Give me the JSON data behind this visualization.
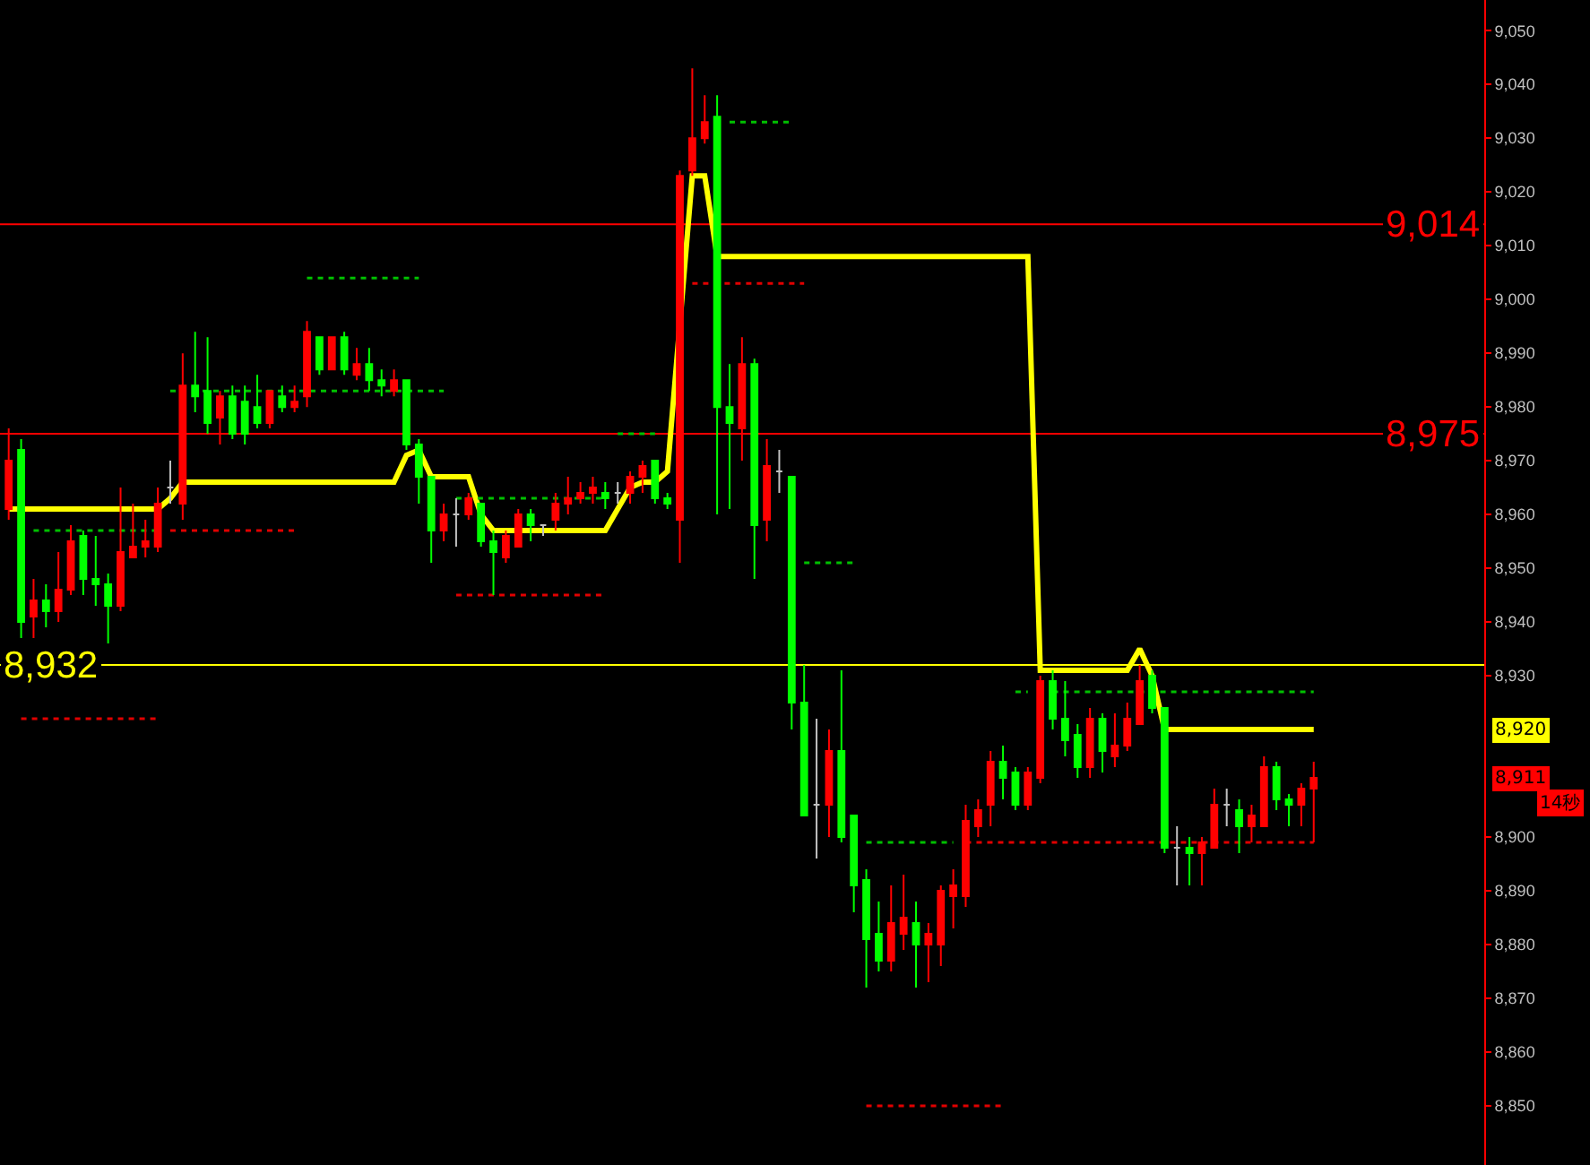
{
  "chart_data": {
    "type": "candlestick",
    "categories": [
      null,
      null,
      null,
      null,
      null,
      null,
      null,
      null,
      null,
      null,
      null,
      null,
      null,
      null,
      null,
      null,
      null,
      null,
      null,
      null,
      null,
      null,
      null,
      null,
      null,
      null,
      null,
      null,
      null,
      null,
      null,
      null,
      null,
      null,
      null,
      null,
      null,
      null,
      null,
      null,
      null,
      null,
      null,
      null,
      null,
      null,
      null,
      null,
      null,
      null,
      null,
      null,
      null,
      null,
      null,
      null,
      null,
      null,
      null,
      null,
      null,
      null,
      null,
      null,
      null,
      null,
      null,
      null,
      null,
      null,
      null,
      null,
      null,
      null,
      null,
      null,
      null,
      null,
      null,
      null,
      null,
      null,
      null,
      null,
      null,
      null,
      null,
      null,
      null,
      null,
      null,
      null,
      null,
      null,
      null,
      null,
      null,
      null,
      null,
      null,
      null,
      null,
      null,
      null,
      null,
      null
    ],
    "colors": [
      "#ff0000",
      "#00ff00",
      "#ff0000",
      "#00ff00",
      "#ff0000",
      "#ff0000",
      "#00ff00",
      "#00ff00",
      "#00ff00",
      "#ff0000",
      "#ff0000",
      "#ff0000",
      "#ff0000",
      "#c0c0c0",
      "#ff0000",
      "#00ff00",
      "#00ff00",
      "#ff0000",
      "#00ff00",
      "#00ff00",
      "#00ff00",
      "#ff0000",
      "#00ff00",
      "#ff0000",
      "#ff0000",
      "#00ff00",
      "#ff0000",
      "#00ff00",
      "#ff0000",
      "#00ff00",
      "#00ff00",
      "#ff0000",
      "#00ff00",
      "#00ff00",
      "#00ff00",
      "#ff0000",
      "#c0c0c0",
      "#ff0000",
      "#00ff00",
      "#00ff00",
      "#ff0000",
      "#ff0000",
      "#00ff00",
      "#c0c0c0",
      "#ff0000",
      "#ff0000",
      "#ff0000",
      "#ff0000",
      "#00ff00",
      "#c0c0c0",
      "#ff0000",
      "#ff0000",
      "#00ff00",
      "#00ff00",
      "#ff0000",
      "#ff0000",
      "#ff0000",
      "#00ff00",
      "#00ff00",
      "#ff0000",
      "#00ff00",
      "#ff0000",
      "#c0c0c0",
      "#00ff00",
      "#00ff00",
      "#c0c0c0",
      "#ff0000",
      "#00ff00",
      "#00ff00",
      "#00ff00",
      "#00ff00",
      "#ff0000",
      "#ff0000",
      "#00ff00",
      "#ff0000",
      "#ff0000",
      "#ff0000",
      "#ff0000",
      "#ff0000",
      "#ff0000",
      "#00ff00",
      "#00ff00",
      "#ff0000",
      "#ff0000",
      "#00ff00",
      "#00ff00",
      "#00ff00",
      "#ff0000",
      "#00ff00",
      "#ff0000",
      "#ff0000",
      "#ff0000",
      "#00ff00",
      "#00ff00",
      "#c0c0c0",
      "#00ff00",
      "#ff0000",
      "#ff0000",
      "#c0c0c0",
      "#00ff00",
      "#ff0000",
      "#ff0000",
      "#00ff00",
      "#00ff00",
      "#ff0000",
      "#ff0000"
    ],
    "ohlc": [
      [
        8961,
        8976,
        8959,
        8970
      ],
      [
        8972,
        8974,
        8937,
        8940
      ],
      [
        8941,
        8948,
        8937,
        8944
      ],
      [
        8944,
        8947,
        8939,
        8942
      ],
      [
        8942,
        8953,
        8940,
        8946
      ],
      [
        8946,
        8958,
        8945,
        8955
      ],
      [
        8956,
        8957,
        8945,
        8948
      ],
      [
        8948,
        8956,
        8943,
        8947
      ],
      [
        8947,
        8949,
        8936,
        8943
      ],
      [
        8943,
        8965,
        8942,
        8953
      ],
      [
        8952,
        8962,
        8952,
        8954
      ],
      [
        8954,
        8959,
        8952,
        8955
      ],
      [
        8954,
        8965,
        8953,
        8962
      ],
      [
        8965,
        8970,
        8962,
        8965
      ],
      [
        8962,
        8990,
        8959,
        8984
      ],
      [
        8984,
        8994,
        8979,
        8982
      ],
      [
        8983,
        8993,
        8975,
        8977
      ],
      [
        8978,
        8983,
        8973,
        8982
      ],
      [
        8982,
        8984,
        8974,
        8975
      ],
      [
        8981,
        8984,
        8973,
        8975
      ],
      [
        8980,
        8986,
        8976,
        8977
      ],
      [
        8977,
        8983,
        8976,
        8983
      ],
      [
        8982,
        8984,
        8979,
        8980
      ],
      [
        8980,
        8984,
        8979,
        8981
      ],
      [
        8982,
        8996,
        8980,
        8994
      ],
      [
        8993,
        8993,
        8986,
        8987
      ],
      [
        8987,
        8993,
        8987,
        8993
      ],
      [
        8993,
        8994,
        8986,
        8987
      ],
      [
        8986,
        8991,
        8985,
        8988
      ],
      [
        8988,
        8991,
        8983,
        8985
      ],
      [
        8985,
        8987,
        8982,
        8984
      ],
      [
        8983,
        8987,
        8982,
        8985
      ],
      [
        8985,
        8985,
        8972,
        8973
      ],
      [
        8973,
        8974,
        8962,
        8967
      ],
      [
        8967,
        8967,
        8951,
        8957
      ],
      [
        8957,
        8962,
        8955,
        8960
      ],
      [
        8960,
        8963,
        8954,
        8960
      ],
      [
        8960,
        8964,
        8959,
        8963
      ],
      [
        8962,
        8962,
        8954,
        8955
      ],
      [
        8955,
        8957,
        8945,
        8953
      ],
      [
        8952,
        8957,
        8951,
        8956
      ],
      [
        8954,
        8961,
        8954,
        8960
      ],
      [
        8960,
        8961,
        8955,
        8958
      ],
      [
        8958,
        8958,
        8956,
        8958
      ],
      [
        8959,
        8964,
        8957,
        8962
      ],
      [
        8962,
        8967,
        8960,
        8963
      ],
      [
        8963,
        8966,
        8962,
        8964
      ],
      [
        8964,
        8967,
        8962,
        8965
      ],
      [
        8964,
        8966,
        8961,
        8963
      ],
      [
        8964,
        8966,
        8962,
        8964
      ],
      [
        8964,
        8968,
        8962,
        8967
      ],
      [
        8967,
        8970,
        8964,
        8969
      ],
      [
        8970,
        8970,
        8962,
        8963
      ],
      [
        8963,
        8964,
        8961,
        8962
      ],
      [
        8959,
        9024,
        8951,
        9023
      ],
      [
        9024,
        9043,
        9023,
        9030
      ],
      [
        9030,
        9038,
        9029,
        9033
      ],
      [
        9034,
        9038,
        8960,
        8980
      ],
      [
        8980,
        8988,
        8961,
        8977
      ],
      [
        8976,
        8993,
        8970,
        8988
      ],
      [
        8988,
        8989,
        8948,
        8958
      ],
      [
        8959,
        8974,
        8955,
        8969
      ],
      [
        8968,
        8972,
        8964,
        8968
      ],
      [
        8967,
        8967,
        8920,
        8925
      ],
      [
        8925,
        8932,
        8904,
        8904
      ],
      [
        8906,
        8922,
        8896,
        8906
      ],
      [
        8906,
        8920,
        8900,
        8916
      ],
      [
        8916,
        8931,
        8899,
        8900
      ],
      [
        8904,
        8904,
        8886,
        8891
      ],
      [
        8892,
        8894,
        8872,
        8881
      ],
      [
        8882,
        8888,
        8875,
        8877
      ],
      [
        8877,
        8891,
        8875,
        8884
      ],
      [
        8882,
        8893,
        8879,
        8885
      ],
      [
        8884,
        8888,
        8872,
        8880
      ],
      [
        8880,
        8884,
        8873,
        8882
      ],
      [
        8880,
        8891,
        8876,
        8890
      ],
      [
        8889,
        8894,
        8883,
        8891
      ],
      [
        8889,
        8906,
        8887,
        8903
      ],
      [
        8902,
        8907,
        8900,
        8905
      ],
      [
        8906,
        8916,
        8902,
        8914
      ],
      [
        8914,
        8917,
        8907,
        8911
      ],
      [
        8912,
        8913,
        8905,
        8906
      ],
      [
        8906,
        8913,
        8905,
        8912
      ],
      [
        8911,
        8930,
        8910,
        8929
      ],
      [
        8929,
        8931,
        8920,
        8922
      ],
      [
        8922,
        8929,
        8915,
        8918
      ],
      [
        8919,
        8921,
        8911,
        8913
      ],
      [
        8913,
        8924,
        8911,
        8922
      ],
      [
        8922,
        8923,
        8912,
        8916
      ],
      [
        8915,
        8923,
        8913,
        8917
      ],
      [
        8917,
        8925,
        8916,
        8922
      ],
      [
        8921,
        8932,
        8921,
        8929
      ],
      [
        8930,
        8931,
        8923,
        8924
      ],
      [
        8924,
        8924,
        8897,
        8898
      ],
      [
        8898,
        8902,
        8891,
        8898
      ],
      [
        8898,
        8900,
        8891,
        8897
      ],
      [
        8897,
        8900,
        8891,
        8899
      ],
      [
        8898,
        8909,
        8898,
        8906
      ],
      [
        8906,
        8909,
        8902,
        8906
      ],
      [
        8905,
        8907,
        8897,
        8902
      ],
      [
        8902,
        8906,
        8899,
        8904
      ],
      [
        8902,
        8915,
        8902,
        8913
      ],
      [
        8913,
        8914,
        8905,
        8907
      ],
      [
        8907,
        8908,
        8902,
        8906
      ],
      [
        8906,
        8910,
        8902,
        8909
      ],
      [
        8909,
        8914,
        8899,
        8911
      ]
    ],
    "series": [
      {
        "type": "line",
        "color": "#ffff00",
        "values": [
          8961,
          8961,
          8961,
          8961,
          8961,
          8961,
          8961,
          8961,
          8961,
          8961,
          8961,
          8961,
          8961,
          8963,
          8966,
          8966,
          8966,
          8966,
          8966,
          8966,
          8966,
          8966,
          8966,
          8966,
          8966,
          8966,
          8966,
          8966,
          8966,
          8966,
          8966,
          8966,
          8971,
          8972,
          8967,
          8967,
          8967,
          8967,
          8960,
          8957,
          8957,
          8957,
          8957,
          8957,
          8957,
          8957,
          8957,
          8957,
          8957,
          8961,
          8965,
          8966,
          8966,
          8968,
          null,
          9023,
          9023,
          9008,
          9008,
          9008,
          9008,
          9008,
          9008,
          9008,
          9008,
          9008,
          9008,
          9008,
          9008,
          9008,
          9008,
          9008,
          9008,
          9008,
          9008,
          9008,
          9008,
          9008,
          9008,
          9008,
          9008,
          9008,
          9008,
          8931,
          8931,
          8931,
          8931,
          8931,
          8931,
          8931,
          8931,
          8935,
          8930,
          8920,
          8920,
          8920,
          8920,
          8920,
          8920,
          8920,
          8920,
          8920,
          8920,
          8920,
          8920,
          8920
        ]
      },
      {
        "type": "line",
        "line_style": "dotted",
        "color": "#00c000",
        "values": [
          null,
          null,
          8957,
          8957,
          8957,
          8957,
          8957,
          8957,
          8957,
          8957,
          8957,
          8957,
          8957,
          null,
          null,
          null,
          null,
          null,
          null,
          null,
          null,
          null,
          null,
          null,
          null,
          null,
          null,
          null,
          null,
          null,
          null,
          null,
          null,
          null,
          null,
          null,
          8963,
          8963,
          8963,
          8963,
          8963,
          8963,
          8963,
          8963,
          8963,
          8963,
          8963,
          8963,
          8963,
          null,
          null,
          null,
          null,
          null,
          null,
          null,
          null,
          null,
          9033,
          9033,
          9033,
          9033,
          9033,
          9033,
          null,
          null,
          null,
          null,
          null,
          8899,
          8899,
          8899,
          8899,
          8899,
          8899,
          8899,
          8899,
          null,
          null,
          null,
          null,
          null,
          null,
          null,
          null,
          null,
          null,
          null,
          null,
          null,
          null,
          null,
          null,
          null,
          null,
          null,
          null,
          null,
          null,
          null,
          null,
          null,
          null,
          null,
          null,
          null
        ]
      },
      {
        "type": "line",
        "line_style": "dotted",
        "color": "#00c000",
        "values": [
          null,
          null,
          null,
          null,
          null,
          null,
          null,
          null,
          null,
          null,
          null,
          null,
          null,
          8983,
          8983,
          8983,
          8983,
          8983,
          8983,
          8983,
          8983,
          8983,
          8983,
          8983,
          8983,
          8983,
          8983,
          8983,
          8983,
          8983,
          8983,
          8983,
          8983,
          8983,
          8983,
          8983,
          null,
          null,
          null,
          null,
          null,
          null,
          null,
          null,
          null,
          null,
          null,
          null,
          null,
          8975,
          8975,
          8975,
          8975,
          null,
          null,
          null,
          null,
          null,
          null,
          null,
          null,
          null,
          null,
          null,
          8951,
          8951,
          8951,
          8951,
          8951,
          null,
          null,
          null,
          null,
          null,
          null,
          null,
          null,
          null,
          null,
          null,
          null,
          8927,
          8927,
          null,
          8927,
          8927,
          8927,
          8927,
          8927,
          8927,
          8927,
          8927,
          8927,
          8927,
          8927,
          8927,
          8927,
          8927,
          8927,
          8927,
          8927,
          8927,
          8927,
          8927,
          8927,
          8927
        ]
      },
      {
        "type": "line",
        "line_style": "dotted",
        "color": "#00c000",
        "values": [
          null,
          null,
          null,
          null,
          null,
          null,
          null,
          null,
          null,
          null,
          null,
          null,
          null,
          null,
          null,
          null,
          null,
          null,
          null,
          null,
          null,
          null,
          null,
          null,
          9004,
          9004,
          9004,
          9004,
          9004,
          9004,
          9004,
          9004,
          9004,
          9004,
          null,
          null,
          null,
          null,
          null,
          null,
          null,
          null,
          null,
          null,
          null,
          null,
          null,
          null,
          null,
          null,
          null,
          null,
          null,
          null,
          null,
          null,
          null,
          null,
          null,
          null,
          null,
          null,
          null,
          null,
          null,
          null,
          null,
          null,
          null,
          null,
          null,
          null,
          null,
          null,
          null,
          null,
          null,
          null,
          null,
          null,
          null,
          null,
          null,
          null,
          null,
          null,
          null,
          null,
          null,
          null,
          null,
          null,
          null,
          null,
          null,
          null,
          null,
          null,
          null,
          null,
          null,
          null,
          null,
          null,
          null,
          null
        ]
      },
      {
        "type": "line",
        "line_style": "dotted",
        "color": "#e00000",
        "values": [
          null,
          8922,
          8922,
          8922,
          8922,
          8922,
          8922,
          8922,
          8922,
          8922,
          8922,
          8922,
          8922,
          null,
          null,
          null,
          null,
          null,
          null,
          null,
          null,
          null,
          null,
          null,
          null,
          null,
          null,
          null,
          null,
          null,
          null,
          null,
          null,
          null,
          null,
          null,
          8945,
          8945,
          8945,
          8945,
          8945,
          8945,
          8945,
          8945,
          8945,
          8945,
          8945,
          8945,
          8945,
          null,
          null,
          null,
          null,
          null,
          null,
          9003,
          9003,
          9003,
          9003,
          9003,
          9003,
          9003,
          9003,
          9003,
          9003,
          null,
          null,
          null,
          null,
          8850,
          8850,
          8850,
          8850,
          8850,
          8850,
          8850,
          8850,
          8850,
          8850,
          8850,
          8850,
          null,
          null,
          null,
          null,
          null,
          null,
          null,
          null,
          null,
          null,
          null,
          null,
          null,
          null,
          null,
          null,
          null,
          null,
          null,
          null,
          null,
          null,
          null,
          null,
          null
        ]
      },
      {
        "type": "line",
        "line_style": "dotted",
        "color": "#e00000",
        "values": [
          null,
          null,
          null,
          null,
          null,
          null,
          null,
          null,
          null,
          null,
          null,
          null,
          null,
          8957,
          8957,
          8957,
          8957,
          8957,
          8957,
          8957,
          8957,
          8957,
          8957,
          8957,
          null,
          null,
          null,
          null,
          null,
          null,
          null,
          null,
          null,
          null,
          null,
          null,
          null,
          null,
          null,
          null,
          null,
          null,
          null,
          null,
          null,
          null,
          null,
          null,
          null,
          null,
          null,
          null,
          null,
          null,
          null,
          null,
          null,
          null,
          null,
          null,
          null,
          null,
          null,
          null,
          null,
          null,
          null,
          null,
          null,
          null,
          null,
          null,
          null,
          null,
          null,
          null,
          null,
          8899,
          8899,
          8899,
          8899,
          8899,
          8899,
          8899,
          8899,
          8899,
          8899,
          8899,
          8899,
          8899,
          8899,
          8899,
          8899,
          8899,
          8899,
          8899,
          8899,
          8899,
          8899,
          8899,
          8899,
          8899,
          8899,
          8899,
          8899,
          8899
        ]
      }
    ],
    "ref_lines": [
      {
        "axis": "y",
        "value": 9014,
        "label": "9,014",
        "color": "#ff0000"
      },
      {
        "axis": "y",
        "value": 8975,
        "label": "8,975",
        "color": "#ff0000"
      },
      {
        "axis": "y",
        "value": 8932,
        "label": "8,932",
        "color": "#ffff00"
      }
    ],
    "annotations": [
      "8,920",
      "8,911",
      "14秒"
    ],
    "ylim": [
      8839,
      9055.7
    ],
    "yticks": [
      {
        "value": 8850,
        "label": "8,850"
      },
      {
        "value": 8860,
        "label": "8,860"
      },
      {
        "value": 8870,
        "label": "8,870"
      },
      {
        "value": 8880,
        "label": "8,880"
      },
      {
        "value": 8890,
        "label": "8,890"
      },
      {
        "value": 8900,
        "label": "8,900"
      },
      {
        "value": 8930,
        "label": "8,930"
      },
      {
        "value": 8940,
        "label": "8,940"
      },
      {
        "value": 8950,
        "label": "8,950"
      },
      {
        "value": 8960,
        "label": "8,960"
      },
      {
        "value": 8970,
        "label": "8,970"
      },
      {
        "value": 8980,
        "label": "8,980"
      },
      {
        "value": 8990,
        "label": "8,990"
      },
      {
        "value": 9000,
        "label": "9,000"
      },
      {
        "value": 9010,
        "label": "9,010"
      },
      {
        "value": 9020,
        "label": "9,020"
      },
      {
        "value": 9030,
        "label": "9,030"
      },
      {
        "value": 9040,
        "label": "9,040"
      },
      {
        "value": 9050,
        "label": "9,050"
      }
    ],
    "tick_labels": "y"
  }
}
